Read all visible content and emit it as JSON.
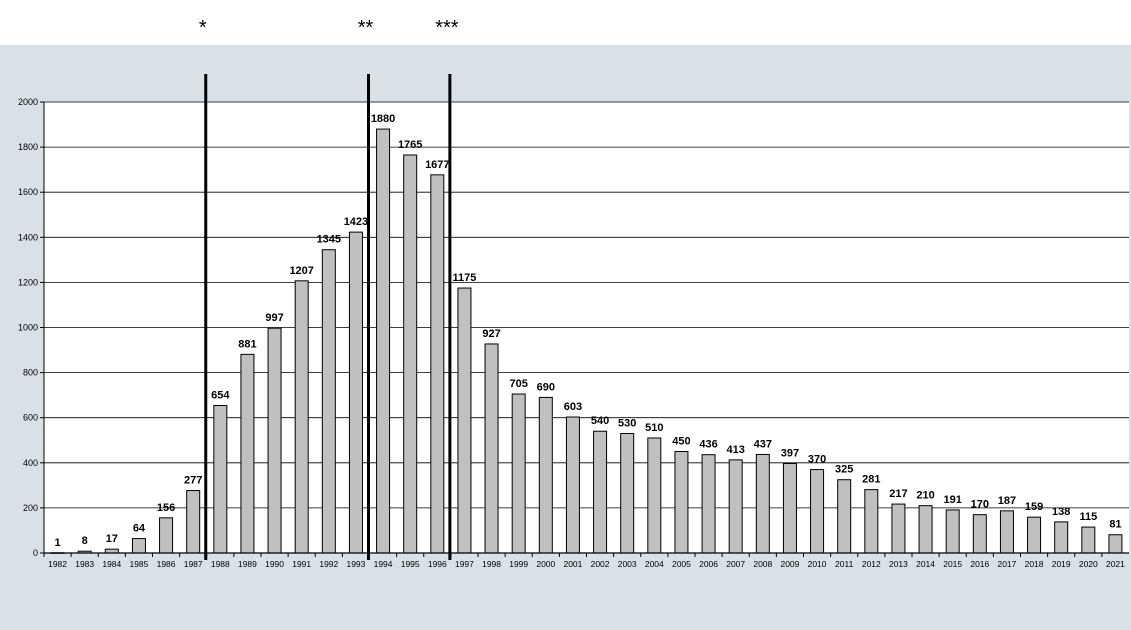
{
  "chart_data": {
    "type": "bar",
    "title": "",
    "xlabel": "",
    "ylabel": "",
    "categories": [
      "1982",
      "1983",
      "1984",
      "1985",
      "1986",
      "1987",
      "1988",
      "1989",
      "1990",
      "1991",
      "1992",
      "1993",
      "1994",
      "1995",
      "1996",
      "1997",
      "1998",
      "1999",
      "2000",
      "2001",
      "2002",
      "2003",
      "2004",
      "2005",
      "2006",
      "2007",
      "2008",
      "2009",
      "2010",
      "2011",
      "2012",
      "2013",
      "2014",
      "2015",
      "2016",
      "2017",
      "2018",
      "2019",
      "2020",
      "2021"
    ],
    "values": [
      1,
      8,
      17,
      64,
      156,
      277,
      654,
      881,
      997,
      1207,
      1345,
      1423,
      1880,
      1765,
      1677,
      1175,
      927,
      705,
      690,
      603,
      540,
      530,
      510,
      450,
      436,
      413,
      437,
      397,
      370,
      325,
      281,
      217,
      210,
      191,
      170,
      187,
      159,
      138,
      115,
      81
    ],
    "data_labels": [
      "1",
      "8",
      "17",
      "64",
      "156",
      "277",
      "654",
      "881",
      "997",
      "1207",
      "1345",
      "1423",
      "1880",
      "1765",
      "1677",
      "1175",
      "927",
      "705",
      "690",
      "603",
      "540",
      "530",
      "510",
      "450",
      "436",
      "413",
      "437",
      "397",
      "370",
      "325",
      "281",
      "217",
      "210",
      "191",
      "170",
      "187",
      "159",
      "138",
      "115",
      "81"
    ],
    "ylim": [
      0,
      2000
    ],
    "yticks": [
      "0",
      "200",
      "400",
      "600",
      "800",
      "1000",
      "1200",
      "1400",
      "1600",
      "1800",
      "2000"
    ],
    "grid": true,
    "legend": "none",
    "markers": [
      {
        "label": "*",
        "between": [
          "1987",
          "1988"
        ]
      },
      {
        "label": "**",
        "between": [
          "1993",
          "1994"
        ]
      },
      {
        "label": "***",
        "between": [
          "1996",
          "1997"
        ]
      }
    ],
    "colors": {
      "bar_fill": "#c0c0c0",
      "bar_stroke": "#000000",
      "plot_background": "#ffffff",
      "chart_background": "#d9e1e6",
      "gridline": "#000000",
      "marker_line": "#000000"
    }
  }
}
